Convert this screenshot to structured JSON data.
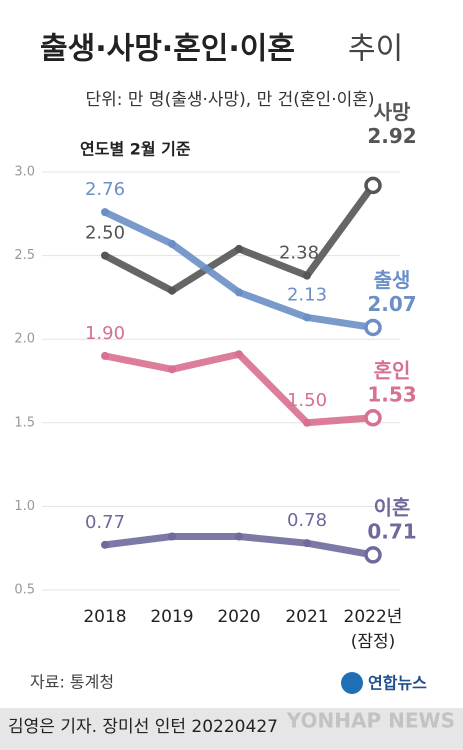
{
  "chart_data": {
    "type": "line",
    "title": "출생·사망·혼인·이혼",
    "title_suffix": "추이",
    "subtitle": "단위: 만 명(출생·사망), 만 건(혼인·이혼)",
    "note": "연도별 2월 기준",
    "categories": [
      "2018",
      "2019",
      "2020",
      "2021",
      "2022년"
    ],
    "category_note": "(잠정)",
    "ylim": [
      0.5,
      3.0
    ],
    "yticks": [
      0.5,
      {
        "value": 1,
        "label": "1.0"
      },
      1.5,
      {
        "value": 2,
        "label": "2.0"
      },
      2.5,
      {
        "value": 3,
        "label": "3.0"
      }
    ],
    "grid": true,
    "series": [
      {
        "name": "사망",
        "color": "#555555",
        "values": [
          2.5,
          2.29,
          2.54,
          2.38,
          2.92
        ],
        "value_labels": [
          "2.50",
          null,
          null,
          "2.38",
          "2.92"
        ]
      },
      {
        "name": "출생",
        "color": "#6b8fc6",
        "values": [
          2.76,
          2.57,
          2.28,
          2.13,
          2.07
        ],
        "value_labels": [
          "2.76",
          null,
          null,
          "2.13",
          "2.07"
        ]
      },
      {
        "name": "혼인",
        "color": "#d8708f",
        "values": [
          1.9,
          1.82,
          1.91,
          1.5,
          1.53
        ],
        "value_labels": [
          "1.90",
          null,
          null,
          "1.50",
          "1.53"
        ]
      },
      {
        "name": "이혼",
        "color": "#6e6a9c",
        "values": [
          0.77,
          0.82,
          0.82,
          0.78,
          0.71
        ],
        "value_labels": [
          "0.77",
          null,
          null,
          "0.78",
          "0.71"
        ]
      }
    ],
    "source": "자료: 통계청",
    "logo": "연합뉴스",
    "watermark": "YONHAP NEWS",
    "credit": "김영은 기자. 장미선 인턴  20220427"
  }
}
